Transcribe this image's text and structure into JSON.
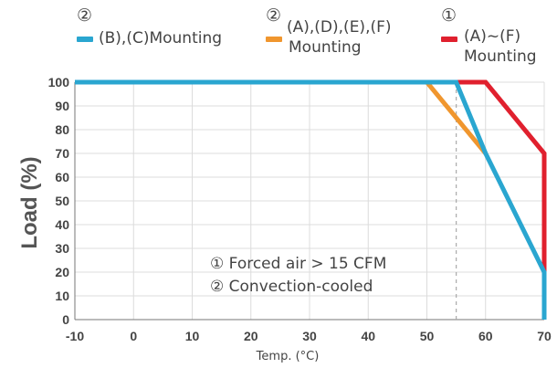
{
  "chart_data": {
    "type": "line",
    "ylabel": "Load (%)",
    "xlabel": "Temp. (°C)",
    "xlim": [
      -10,
      70
    ],
    "ylim": [
      0,
      100
    ],
    "x_ticks": [
      -10,
      0,
      10,
      20,
      30,
      40,
      50,
      60,
      70
    ],
    "y_ticks": [
      0,
      10,
      20,
      30,
      40,
      50,
      60,
      70,
      80,
      90,
      100
    ],
    "grid": true,
    "reference_line_x": 55,
    "series": [
      {
        "name": "(B),(C)Mounting",
        "marker": "②",
        "color": "#2aa6d0",
        "points": [
          [
            -10,
            100
          ],
          [
            55,
            100
          ],
          [
            60,
            70
          ],
          [
            70,
            20
          ],
          [
            70,
            0
          ]
        ]
      },
      {
        "name": "(A),(D),(E),(F) Mounting",
        "marker": "②",
        "color": "#f0962e",
        "points": [
          [
            -10,
            100
          ],
          [
            50,
            100
          ],
          [
            60,
            70
          ]
        ]
      },
      {
        "name": "(A)~(F) Mounting",
        "marker": "①",
        "color": "#e0202e",
        "points": [
          [
            -10,
            100
          ],
          [
            60,
            100
          ],
          [
            70,
            70
          ],
          [
            70,
            0
          ]
        ]
      }
    ],
    "annotations": [
      "① Forced air > 15 CFM",
      "② Convection-cooled"
    ]
  },
  "legend": [
    {
      "marker": "②",
      "label_line1": "(B),(C)Mounting",
      "label_line2": "",
      "color": "#2aa6d0"
    },
    {
      "marker": "②",
      "label_line1": "(A),(D),(E),(F)",
      "label_line2": "Mounting",
      "color": "#f0962e"
    },
    {
      "marker": "①",
      "label_line1": "(A)~(F)",
      "label_line2": "Mounting",
      "color": "#e0202e"
    }
  ]
}
